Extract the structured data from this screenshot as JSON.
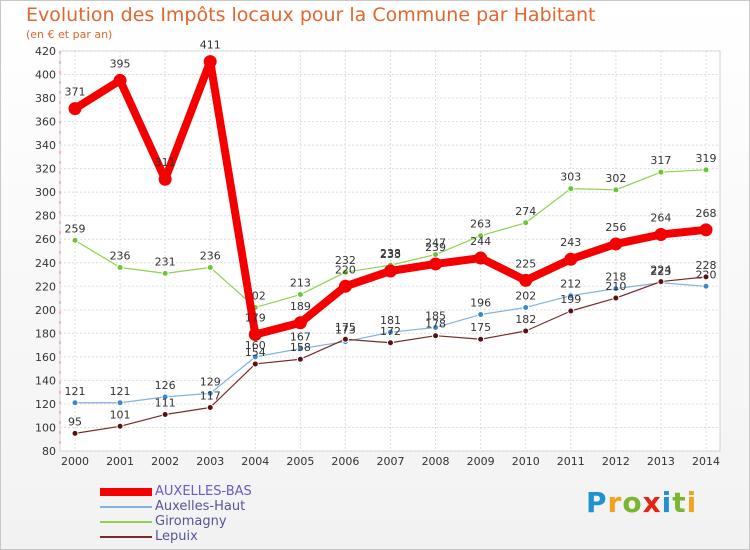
{
  "title": "Evolution des Impôts locaux pour la Commune par Habitant",
  "subtitle": "(en € et par an)",
  "logo": [
    "P",
    "r",
    "o",
    "x",
    "i",
    "t",
    "i"
  ],
  "logo_colors": [
    "#1f93d1",
    "#f0a31c",
    "#79b731",
    "#e42313",
    "#1f93d1",
    "#79b731",
    "#f0a31c"
  ],
  "chart_data": {
    "type": "line",
    "title": "Evolution des Impôts locaux pour la Commune par Habitant",
    "subtitle": "(en € et par an)",
    "x": [
      2000,
      2001,
      2002,
      2003,
      2004,
      2005,
      2006,
      2007,
      2008,
      2009,
      2010,
      2011,
      2012,
      2013,
      2014
    ],
    "ylim": [
      80,
      420
    ],
    "yticks": [
      80,
      100,
      120,
      140,
      160,
      180,
      200,
      220,
      240,
      260,
      280,
      300,
      320,
      340,
      360,
      380,
      400,
      420
    ],
    "grid": true,
    "legend_position": "bottom-left",
    "series": [
      {
        "name": "Giromagny",
        "color": "#8fd14f",
        "marker": "#6cc43a",
        "width": 1.2,
        "values": [
          259,
          236,
          231,
          236,
          202,
          213,
          232,
          238,
          247,
          263,
          274,
          303,
          302,
          317,
          319
        ]
      },
      {
        "name": "Auxelles-Haut",
        "color": "#7fb4e0",
        "marker": "#3b8ad0",
        "width": 1.2,
        "values": [
          121,
          121,
          126,
          129,
          160,
          167,
          173,
          181,
          185,
          196,
          202,
          212,
          218,
          223,
          220
        ]
      },
      {
        "name": "Lepuix",
        "color": "#7a2a2a",
        "marker": "#5a1010",
        "width": 1.2,
        "values": [
          95,
          101,
          111,
          117,
          154,
          158,
          175,
          172,
          178,
          175,
          182,
          199,
          210,
          224,
          228
        ]
      },
      {
        "name": "AUXELLES-BAS",
        "color": "#f40000",
        "marker": "#f40000",
        "width": 8,
        "values": [
          371,
          395,
          311,
          411,
          179,
          189,
          220,
          233,
          239,
          244,
          225,
          243,
          256,
          264,
          268
        ]
      }
    ]
  }
}
